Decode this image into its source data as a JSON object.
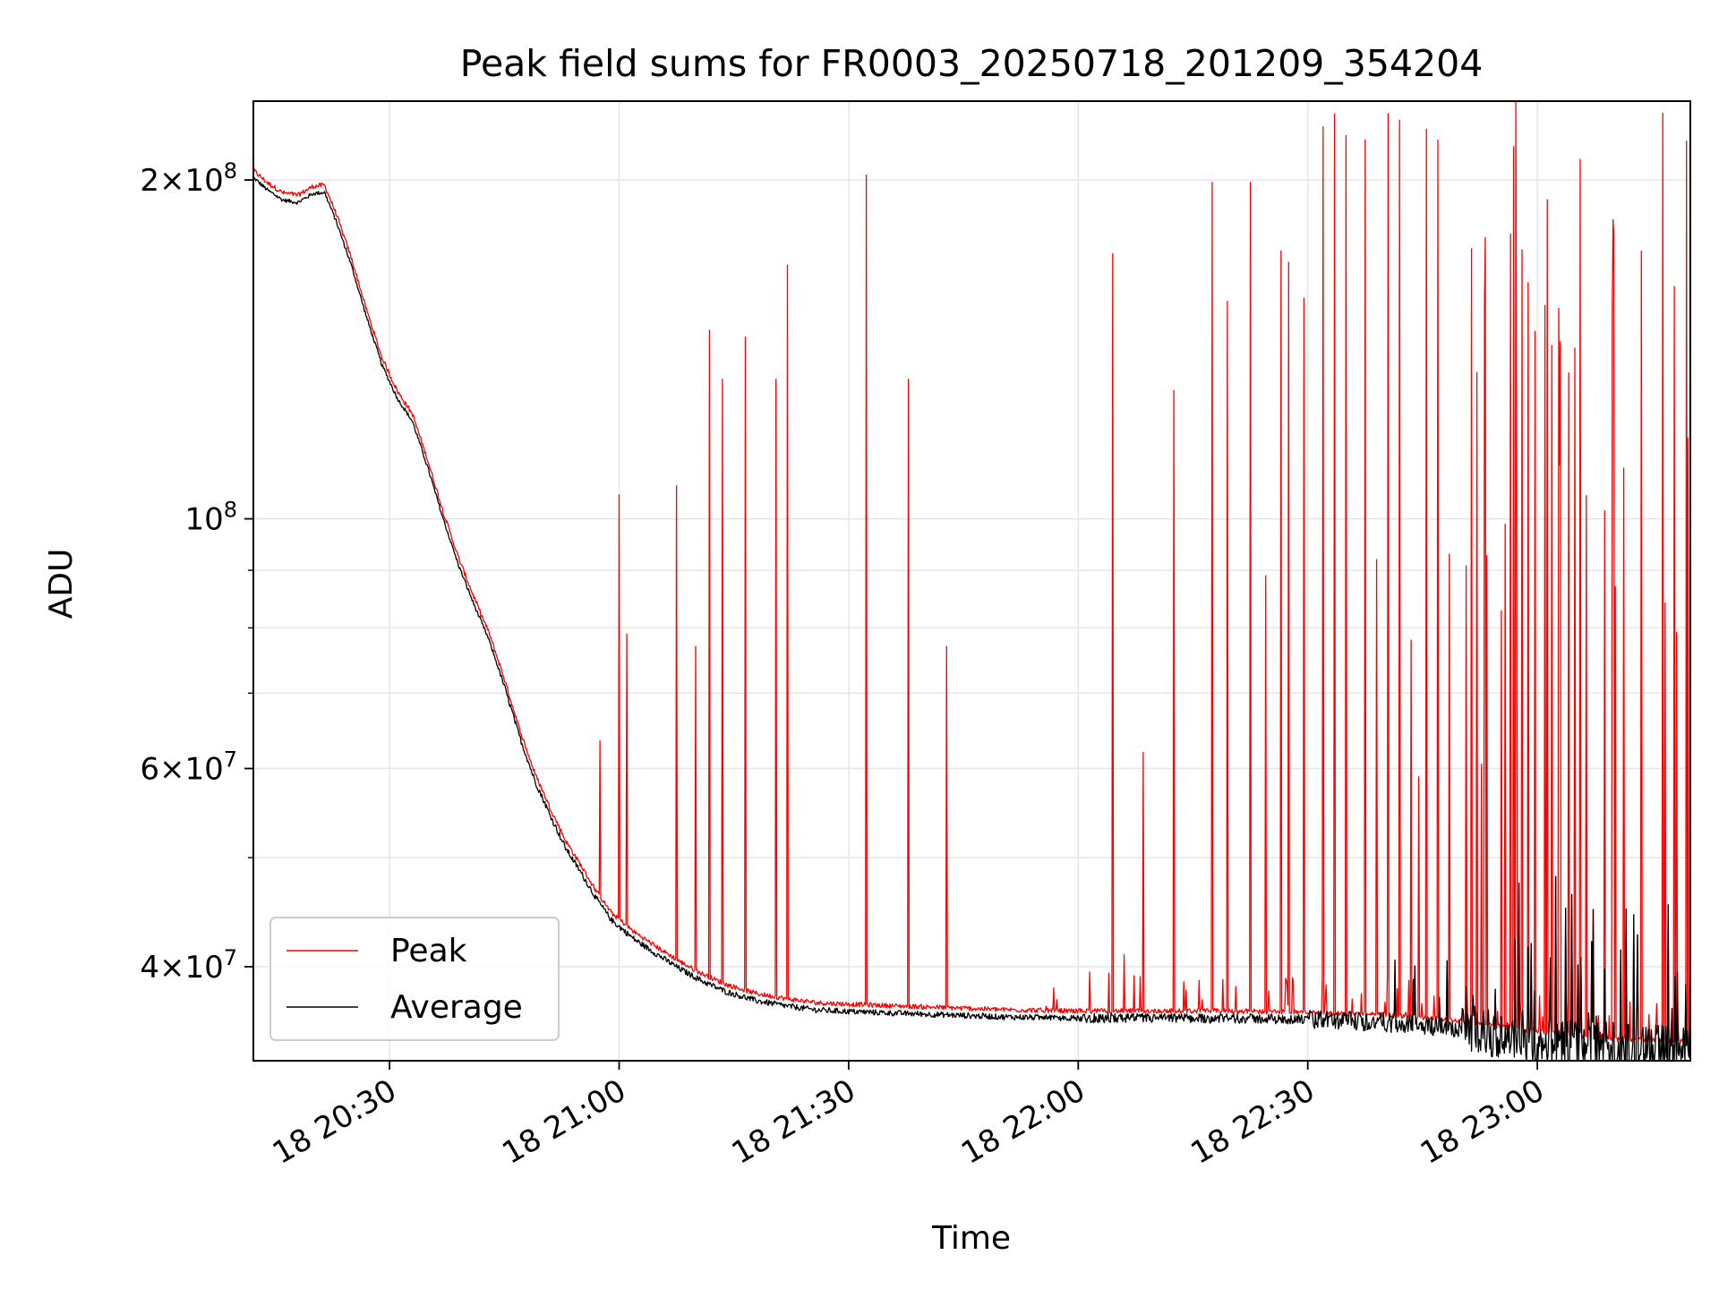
{
  "chart_data": {
    "type": "line",
    "title": "Peak field sums for FR0003_20250718_201209_354204",
    "xlabel": "Time",
    "ylabel": "ADU",
    "x_unit": "minutes after 20:00 on the 18th",
    "x_range": [
      12.2,
      200.0
    ],
    "y_scale": "log",
    "y_range": [
      33000000,
      235000000
    ],
    "grid": true,
    "legend": {
      "placement": "lower-left",
      "entries": [
        "Peak",
        "Average"
      ]
    },
    "x_ticks": [
      {
        "value": 30,
        "label": "18 20:30"
      },
      {
        "value": 60,
        "label": "18 21:00"
      },
      {
        "value": 90,
        "label": "18 21:30"
      },
      {
        "value": 120,
        "label": "18 22:00"
      },
      {
        "value": 150,
        "label": "18 22:30"
      },
      {
        "value": 180,
        "label": "18 23:00"
      }
    ],
    "y_ticks": [
      {
        "value": 40000000,
        "base": "4",
        "exp": "7"
      },
      {
        "value": 60000000,
        "base": "6",
        "exp": "7"
      },
      {
        "value": 100000000,
        "base": "",
        "exp": "8"
      },
      {
        "value": 200000000,
        "base": "2",
        "exp": "8"
      }
    ],
    "y_minor_ticks": [
      50000000,
      70000000,
      80000000,
      90000000
    ],
    "series": [
      {
        "name": "Average",
        "color": "#000000",
        "baseline": [
          [
            12.2,
            201000000
          ],
          [
            14,
            196000000
          ],
          [
            16,
            192000000
          ],
          [
            18,
            191000000
          ],
          [
            20,
            194500000
          ],
          [
            21.5,
            195000000
          ],
          [
            23,
            184000000
          ],
          [
            25,
            168000000
          ],
          [
            27,
            151000000
          ],
          [
            29,
            137000000
          ],
          [
            31,
            128000000
          ],
          [
            33,
            122000000
          ],
          [
            35,
            111000000
          ],
          [
            37,
            100000000
          ],
          [
            39,
            91000000
          ],
          [
            41,
            84000000
          ],
          [
            43,
            78000000
          ],
          [
            45,
            71000000
          ],
          [
            47,
            64000000
          ],
          [
            49,
            58500000
          ],
          [
            51,
            54500000
          ],
          [
            53,
            51000000
          ],
          [
            55,
            48500000
          ],
          [
            57,
            46000000
          ],
          [
            59,
            44000000
          ],
          [
            62,
            42300000
          ],
          [
            65,
            41000000
          ],
          [
            68,
            39800000
          ],
          [
            71,
            38800000
          ],
          [
            74,
            38000000
          ],
          [
            78,
            37300000
          ],
          [
            82,
            36900000
          ],
          [
            86,
            36600000
          ],
          [
            90,
            36500000
          ],
          [
            100,
            36300000
          ],
          [
            110,
            36100000
          ],
          [
            120,
            36000000
          ],
          [
            130,
            36000000
          ],
          [
            140,
            36000000
          ],
          [
            150,
            35900000
          ],
          [
            160,
            35700000
          ],
          [
            170,
            35300000
          ],
          [
            180,
            34500000
          ],
          [
            190,
            34000000
          ],
          [
            200,
            33800000
          ]
        ]
      },
      {
        "name": "Peak",
        "color": "#ff0000",
        "spikes": [
          [
            57.5,
            63500000
          ],
          [
            60,
            105000000
          ],
          [
            61,
            79000000
          ],
          [
            67.5,
            107000000
          ],
          [
            70,
            77000000
          ],
          [
            71.8,
            147000000
          ],
          [
            73.5,
            133000000
          ],
          [
            76.5,
            145000000
          ],
          [
            80.5,
            133000000
          ],
          [
            82,
            168000000
          ],
          [
            92.3,
            202000000
          ],
          [
            97.8,
            133000000
          ],
          [
            102.8,
            77000000
          ],
          [
            124.5,
            172000000
          ],
          [
            126,
            41000000
          ],
          [
            128.5,
            62000000
          ],
          [
            132.5,
            130000000
          ],
          [
            137.5,
            199000000
          ],
          [
            139.5,
            156000000
          ],
          [
            142.5,
            199000000
          ],
          [
            144.5,
            89000000
          ],
          [
            146.5,
            173000000
          ],
          [
            147.5,
            169000000
          ],
          [
            149.5,
            157000000
          ],
          [
            152,
            223000000
          ],
          [
            153.5,
            229000000
          ],
          [
            155,
            219000000
          ],
          [
            157.5,
            217000000
          ],
          [
            159,
            92000000
          ],
          [
            160.5,
            229000000
          ],
          [
            162,
            226000000
          ],
          [
            163.5,
            78000000
          ],
          [
            164.5,
            59000000
          ],
          [
            165.5,
            222000000
          ],
          [
            167,
            217000000
          ],
          [
            168.5,
            93000000
          ]
        ]
      }
    ]
  }
}
